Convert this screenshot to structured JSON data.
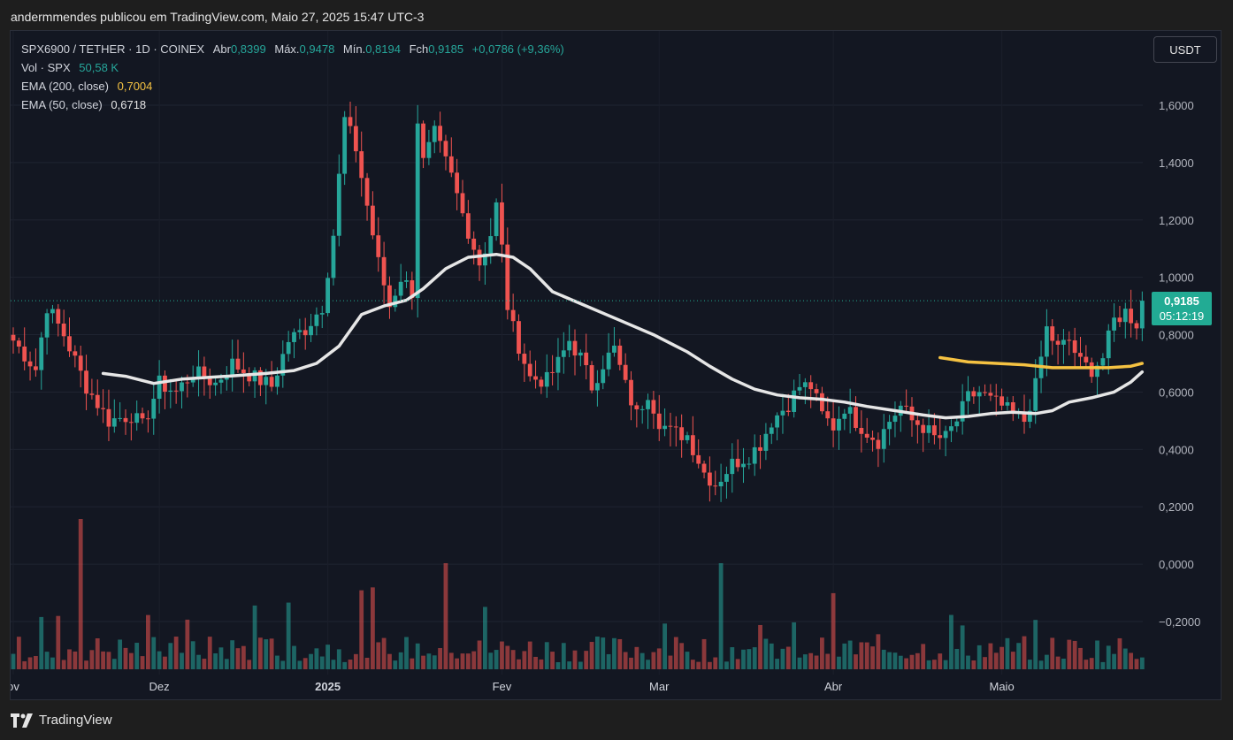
{
  "publish_line": "andermmendes publicou em TradingView.com, Maio 27, 2025 15:47 UTC-3",
  "legend": {
    "symbol_line": {
      "symbol": "SPX6900 / TETHER · 1D · COINEX",
      "open_label": "Abr",
      "open": "0,8399",
      "high_label": "Máx.",
      "high": "0,9478",
      "low_label": "Mín.",
      "low": "0,8194",
      "close_label": "Fch",
      "close": "0,9185",
      "change": "+0,0786 (+9,36%)"
    },
    "volume_label": "Vol · SPX",
    "volume_value": "50,58 K",
    "ema200_label": "EMA (200, close)",
    "ema200_value": "0,7004",
    "ema50_label": "EMA (50, close)",
    "ema50_value": "0,6718"
  },
  "currency_button": "USDT",
  "price_tag": {
    "price": "0,9185",
    "countdown": "05:12:19"
  },
  "brand": "TradingView",
  "colors": {
    "up": "#26a69a",
    "down": "#ef5350",
    "ema50": "#e6e6e6",
    "ema200": "#f5c242",
    "background": "#131722",
    "accent": "#22ab94"
  },
  "chart_data": {
    "type": "candlestick",
    "title": "",
    "y_axis_ticks": [
      {
        "value": 1.6,
        "label": "1,6000"
      },
      {
        "value": 1.4,
        "label": "1,4000"
      },
      {
        "value": 1.2,
        "label": "1,2000"
      },
      {
        "value": 1.0,
        "label": "1,0000"
      },
      {
        "value": 0.8,
        "label": "0,8000"
      },
      {
        "value": 0.6,
        "label": "0,6000"
      },
      {
        "value": 0.4,
        "label": "0,4000"
      },
      {
        "value": 0.2,
        "label": "0,2000"
      },
      {
        "value": 0.0,
        "label": "0,0000"
      },
      {
        "value": -0.2,
        "label": "−0,2000"
      }
    ],
    "ylim": [
      -0.3,
      1.85
    ],
    "x_axis_labels": [
      {
        "label": "ov",
        "bar": 0,
        "bold": false
      },
      {
        "label": "Dez",
        "bar": 26,
        "bold": false
      },
      {
        "label": "2025",
        "bar": 56,
        "bold": true
      },
      {
        "label": "Fev",
        "bar": 87,
        "bold": false
      },
      {
        "label": "Mar",
        "bar": 115,
        "bold": false
      },
      {
        "label": "Abr",
        "bar": 146,
        "bold": false
      },
      {
        "label": "Maio",
        "bar": 176,
        "bold": false
      }
    ],
    "last_price": 0.9185,
    "price_anchors": [
      [
        0,
        0.78
      ],
      [
        4,
        0.68
      ],
      [
        6,
        0.9
      ],
      [
        9,
        0.8
      ],
      [
        13,
        0.62
      ],
      [
        17,
        0.5
      ],
      [
        21,
        0.52
      ],
      [
        23,
        0.48
      ],
      [
        26,
        0.63
      ],
      [
        29,
        0.6
      ],
      [
        32,
        0.67
      ],
      [
        36,
        0.63
      ],
      [
        39,
        0.7
      ],
      [
        43,
        0.65
      ],
      [
        46,
        0.62
      ],
      [
        49,
        0.78
      ],
      [
        52,
        0.82
      ],
      [
        55,
        0.9
      ],
      [
        57,
        1.15
      ],
      [
        58,
        1.35
      ],
      [
        59,
        1.55
      ],
      [
        61,
        1.45
      ],
      [
        63,
        1.25
      ],
      [
        65,
        1.05
      ],
      [
        67,
        0.9
      ],
      [
        69,
        1.0
      ],
      [
        71,
        0.95
      ],
      [
        72,
        1.55
      ],
      [
        73,
        1.4
      ],
      [
        75,
        1.5
      ],
      [
        78,
        1.35
      ],
      [
        80,
        1.22
      ],
      [
        83,
        1.05
      ],
      [
        85,
        1.15
      ],
      [
        86,
        1.25
      ],
      [
        87,
        1.1
      ],
      [
        88,
        0.9
      ],
      [
        89,
        0.82
      ],
      [
        92,
        0.65
      ],
      [
        95,
        0.64
      ],
      [
        97,
        0.7
      ],
      [
        99,
        0.78
      ],
      [
        101,
        0.72
      ],
      [
        103,
        0.62
      ],
      [
        105,
        0.7
      ],
      [
        107,
        0.75
      ],
      [
        109,
        0.62
      ],
      [
        111,
        0.52
      ],
      [
        113,
        0.6
      ],
      [
        115,
        0.5
      ],
      [
        117,
        0.46
      ],
      [
        120,
        0.45
      ],
      [
        123,
        0.32
      ],
      [
        125,
        0.28
      ],
      [
        128,
        0.35
      ],
      [
        131,
        0.38
      ],
      [
        133,
        0.42
      ],
      [
        135,
        0.5
      ],
      [
        138,
        0.56
      ],
      [
        140,
        0.62
      ],
      [
        142,
        0.62
      ],
      [
        144,
        0.52
      ],
      [
        146,
        0.48
      ],
      [
        148,
        0.55
      ],
      [
        150,
        0.5
      ],
      [
        152,
        0.46
      ],
      [
        154,
        0.43
      ],
      [
        156,
        0.5
      ],
      [
        158,
        0.55
      ],
      [
        160,
        0.5
      ],
      [
        162,
        0.48
      ],
      [
        164,
        0.44
      ],
      [
        166,
        0.44
      ],
      [
        168,
        0.5
      ],
      [
        170,
        0.58
      ],
      [
        172,
        0.6
      ],
      [
        174,
        0.57
      ],
      [
        176,
        0.55
      ],
      [
        178,
        0.52
      ],
      [
        180,
        0.5
      ],
      [
        182,
        0.62
      ],
      [
        184,
        0.82
      ],
      [
        186,
        0.75
      ],
      [
        188,
        0.78
      ],
      [
        190,
        0.7
      ],
      [
        192,
        0.68
      ],
      [
        194,
        0.72
      ],
      [
        196,
        0.85
      ],
      [
        198,
        0.88
      ],
      [
        200,
        0.84
      ],
      [
        201,
        0.9185
      ]
    ],
    "ema50": [
      [
        16,
        0.665
      ],
      [
        20,
        0.655
      ],
      [
        25,
        0.63
      ],
      [
        30,
        0.645
      ],
      [
        38,
        0.655
      ],
      [
        45,
        0.665
      ],
      [
        50,
        0.675
      ],
      [
        54,
        0.7
      ],
      [
        58,
        0.76
      ],
      [
        62,
        0.87
      ],
      [
        66,
        0.9
      ],
      [
        70,
        0.92
      ],
      [
        73,
        0.96
      ],
      [
        77,
        1.03
      ],
      [
        81,
        1.07
      ],
      [
        86,
        1.08
      ],
      [
        89,
        1.07
      ],
      [
        92,
        1.03
      ],
      [
        96,
        0.95
      ],
      [
        102,
        0.9
      ],
      [
        108,
        0.85
      ],
      [
        114,
        0.8
      ],
      [
        120,
        0.74
      ],
      [
        124,
        0.69
      ],
      [
        128,
        0.645
      ],
      [
        132,
        0.61
      ],
      [
        136,
        0.59
      ],
      [
        140,
        0.58
      ],
      [
        144,
        0.575
      ],
      [
        148,
        0.565
      ],
      [
        152,
        0.55
      ],
      [
        157,
        0.535
      ],
      [
        162,
        0.52
      ],
      [
        166,
        0.51
      ],
      [
        170,
        0.515
      ],
      [
        174,
        0.525
      ],
      [
        178,
        0.53
      ],
      [
        182,
        0.525
      ],
      [
        185,
        0.535
      ],
      [
        188,
        0.565
      ],
      [
        192,
        0.58
      ],
      [
        196,
        0.6
      ],
      [
        199,
        0.635
      ],
      [
        201,
        0.67
      ]
    ],
    "ema200": [
      [
        165,
        0.72
      ],
      [
        170,
        0.705
      ],
      [
        175,
        0.7
      ],
      [
        180,
        0.695
      ],
      [
        185,
        0.685
      ],
      [
        190,
        0.685
      ],
      [
        195,
        0.685
      ],
      [
        199,
        0.69
      ],
      [
        201,
        0.7
      ]
    ]
  }
}
